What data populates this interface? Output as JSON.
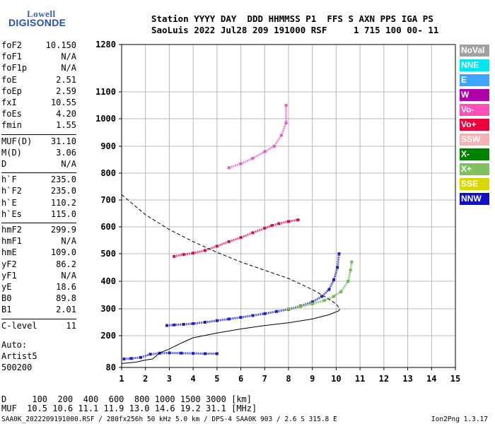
{
  "logo": {
    "line1": "Lowell",
    "line2": "DIGISONDE"
  },
  "header": {
    "line1": "Station YYYY DAY  DDD HHMMSS P1  FFS S AXN PPS IGA PS",
    "line2": "SaoLuis 2022 Jul28 209 191000 RSF     1 715 100 00- 11"
  },
  "parameters": [
    {
      "group": [
        {
          "name": "foF2",
          "value": "10.150"
        },
        {
          "name": "foF1",
          "value": "N/A"
        },
        {
          "name": "foF1p",
          "value": "N/A"
        },
        {
          "name": "foE",
          "value": "2.51"
        },
        {
          "name": "foEp",
          "value": "2.59"
        },
        {
          "name": "fxI",
          "value": "10.55"
        },
        {
          "name": "foEs",
          "value": "4.20"
        },
        {
          "name": "fmin",
          "value": "1.55"
        }
      ]
    },
    {
      "group": [
        {
          "name": "MUF(D)",
          "value": "31.10"
        },
        {
          "name": "M(D)",
          "value": "3.06"
        },
        {
          "name": "D",
          "value": "N/A"
        }
      ]
    },
    {
      "group": [
        {
          "name": "h`F",
          "value": "235.0"
        },
        {
          "name": "h`F2",
          "value": "235.0"
        },
        {
          "name": "h`E",
          "value": "110.2"
        },
        {
          "name": "h`Es",
          "value": "115.0"
        }
      ]
    },
    {
      "group": [
        {
          "name": "hmF2",
          "value": "299.9"
        },
        {
          "name": "hmF1",
          "value": "N/A"
        },
        {
          "name": "hmE",
          "value": "109.0"
        },
        {
          "name": "yF2",
          "value": "86.2"
        },
        {
          "name": "yF1",
          "value": "N/A"
        },
        {
          "name": "yE",
          "value": "18.6"
        },
        {
          "name": "B0",
          "value": "89.8"
        },
        {
          "name": "B1",
          "value": "2.01"
        }
      ]
    },
    {
      "group": [
        {
          "name": "C-level",
          "value": "11"
        }
      ]
    }
  ],
  "auto": {
    "line1": "Auto:",
    "line2": "Artist5",
    "line3": "500200"
  },
  "legend": [
    {
      "label": "NoVal",
      "color": "#a0a0a0"
    },
    {
      "label": "NNE",
      "color": "#00e5ee"
    },
    {
      "label": "E",
      "color": "#3da5ff"
    },
    {
      "label": "W",
      "color": "#b000a8"
    },
    {
      "label": "Vo-",
      "color": "#ff50b8"
    },
    {
      "label": "Vo+",
      "color": "#f0003c"
    },
    {
      "label": "SSW",
      "color": "#f8b0b0"
    },
    {
      "label": "X-",
      "color": "#008000"
    },
    {
      "label": "X+",
      "color": "#80c060"
    },
    {
      "label": "SSE",
      "color": "#d8d800"
    },
    {
      "label": "NNW",
      "color": "#1010c8"
    }
  ],
  "bottom": {
    "d_row": "D     100  200  400  600  800 1000 1500 3000 [km]",
    "muf_row": "MUF  10.5 10.6 11.1 11.9 13.0 14.6 19.2 31.1 [MHz]"
  },
  "footer": {
    "left": "SAA0K_2022209191000.RSF / 280fx256h 50 kHz 5.0 km / DPS-4 SAA0K 903 / 2.6 S 315.8 E",
    "right": "Ion2Png 1.3.17"
  },
  "chart_data": {
    "type": "scatter",
    "x_ticks": [
      "1",
      "2",
      "3",
      "4",
      "5",
      "6",
      "7",
      "8",
      "9",
      "10",
      "11",
      "12",
      "13",
      "14",
      "15"
    ],
    "y_ticks": [
      "80",
      "200",
      "300",
      "400",
      "500",
      "600",
      "700",
      "800",
      "900",
      "1000",
      "1100",
      "1280"
    ],
    "xlim": [
      1,
      15
    ],
    "ylim": [
      80,
      1280
    ],
    "grid": true,
    "legend_position": "right",
    "traces": [
      {
        "name": "o_F",
        "mode": "points",
        "color": "#2020c0",
        "points": [
          [
            2.9,
            238
          ],
          [
            3.2,
            240
          ],
          [
            3.6,
            242
          ],
          [
            4.0,
            245
          ],
          [
            4.5,
            250
          ],
          [
            5.0,
            256
          ],
          [
            5.5,
            262
          ],
          [
            6.0,
            268
          ],
          [
            6.5,
            275
          ],
          [
            7.0,
            282
          ],
          [
            7.5,
            290
          ],
          [
            8.0,
            298
          ],
          [
            8.5,
            310
          ],
          [
            9.0,
            325
          ],
          [
            9.4,
            345
          ],
          [
            9.7,
            370
          ],
          [
            9.9,
            405
          ],
          [
            10.05,
            450
          ],
          [
            10.12,
            500
          ]
        ]
      },
      {
        "name": "x_F",
        "mode": "points",
        "color": "#70b850",
        "points": [
          [
            8.0,
            300
          ],
          [
            8.5,
            308
          ],
          [
            9.0,
            318
          ],
          [
            9.5,
            330
          ],
          [
            9.9,
            345
          ],
          [
            10.2,
            362
          ],
          [
            10.5,
            400
          ],
          [
            10.6,
            440
          ],
          [
            10.65,
            470
          ]
        ]
      },
      {
        "name": "F_2hop",
        "mode": "points",
        "color": "#d0104a",
        "points": [
          [
            3.2,
            490
          ],
          [
            3.6,
            497
          ],
          [
            4.0,
            502
          ],
          [
            4.5,
            512
          ],
          [
            5.0,
            528
          ],
          [
            5.5,
            545
          ],
          [
            6.0,
            560
          ],
          [
            6.5,
            578
          ],
          [
            7.0,
            595
          ],
          [
            7.3,
            605
          ],
          [
            7.6,
            612
          ],
          [
            8.0,
            620
          ],
          [
            8.4,
            626
          ]
        ]
      },
      {
        "name": "F_3hop",
        "mode": "points",
        "color": "#e060c0",
        "points": [
          [
            5.5,
            820
          ],
          [
            6.0,
            835
          ],
          [
            6.5,
            855
          ],
          [
            7.0,
            880
          ],
          [
            7.4,
            900
          ],
          [
            7.7,
            940
          ],
          [
            7.9,
            985
          ],
          [
            7.9,
            1050
          ]
        ]
      },
      {
        "name": "E_layer",
        "mode": "points",
        "color": "#2020c0",
        "points": [
          [
            1.1,
            112
          ],
          [
            1.4,
            114
          ],
          [
            1.8,
            118
          ],
          [
            2.2,
            130
          ],
          [
            2.6,
            134
          ],
          [
            3.0,
            135
          ],
          [
            3.5,
            134
          ],
          [
            4.0,
            133
          ],
          [
            4.5,
            132
          ],
          [
            5.0,
            132
          ]
        ]
      },
      {
        "name": "profile_dashed",
        "mode": "dashed-line",
        "color": "#000000",
        "points": [
          [
            1.0,
            720
          ],
          [
            2.0,
            645
          ],
          [
            3.0,
            590
          ],
          [
            4.0,
            545
          ],
          [
            5.0,
            505
          ],
          [
            6.0,
            470
          ],
          [
            7.0,
            440
          ],
          [
            8.0,
            410
          ],
          [
            9.0,
            370
          ],
          [
            9.6,
            340
          ],
          [
            10.0,
            318
          ],
          [
            10.15,
            300
          ]
        ]
      },
      {
        "name": "profile_solid",
        "mode": "solid-line",
        "color": "#000000",
        "points": [
          [
            1.0,
            95
          ],
          [
            1.6,
            100
          ],
          [
            2.0,
            108
          ],
          [
            2.3,
            112
          ],
          [
            2.6,
            135
          ],
          [
            3.0,
            150
          ],
          [
            3.5,
            172
          ],
          [
            4.0,
            192
          ],
          [
            5.0,
            210
          ],
          [
            6.0,
            225
          ],
          [
            7.0,
            238
          ],
          [
            8.0,
            248
          ],
          [
            9.0,
            262
          ],
          [
            9.7,
            278
          ],
          [
            10.1,
            292
          ],
          [
            10.15,
            300
          ]
        ]
      }
    ]
  }
}
